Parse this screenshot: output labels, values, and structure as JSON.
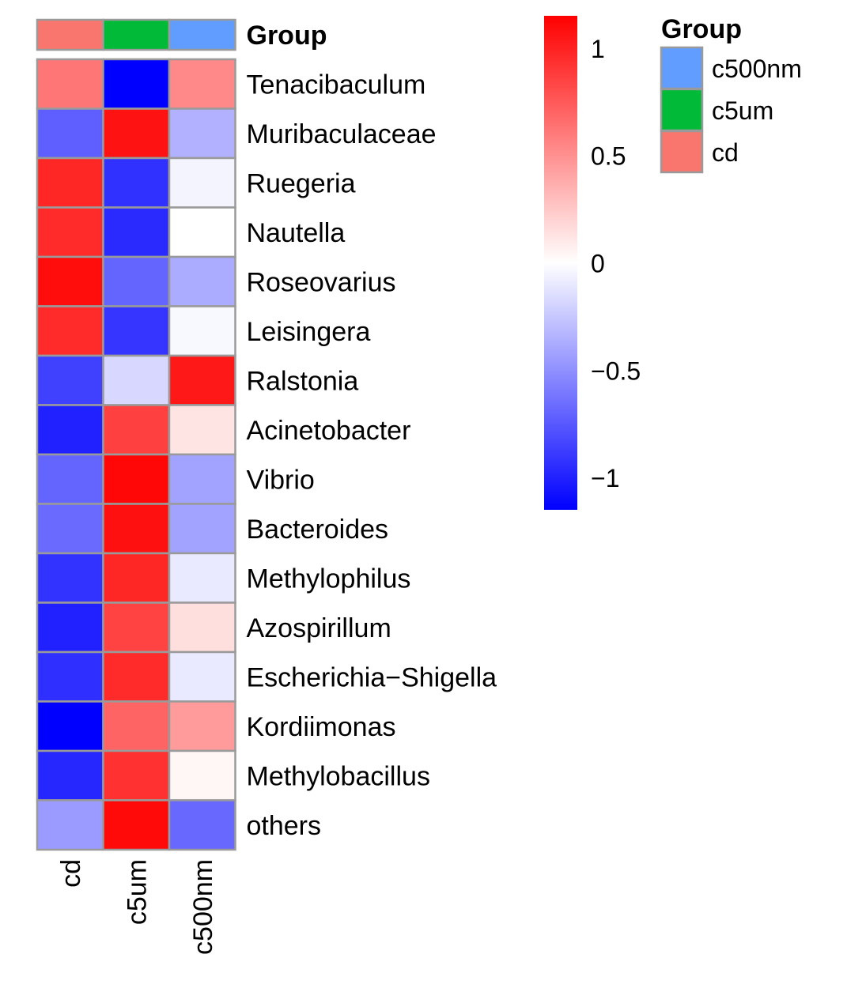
{
  "chart_data": {
    "type": "heatmap",
    "columns": [
      "cd",
      "c5um",
      "c500nm"
    ],
    "rows": [
      "Tenacibaculum",
      "Muribaculaceae",
      "Ruegeria",
      "Nautella",
      "Roseovarius",
      "Leisingera",
      "Ralstonia",
      "Acinetobacter",
      "Vibrio",
      "Bacteroides",
      "Methylophilus",
      "Azospirillum",
      "Escherichia−Shigella",
      "Kordiimonas",
      "Methylobacillus",
      "others"
    ],
    "values": [
      [
        0.62,
        -1.15,
        0.53
      ],
      [
        -0.72,
        1.07,
        -0.35
      ],
      [
        0.98,
        -0.93,
        -0.05
      ],
      [
        0.96,
        -0.96,
        0.0
      ],
      [
        1.09,
        -0.7,
        -0.38
      ],
      [
        0.96,
        -0.91,
        -0.03
      ],
      [
        -0.86,
        -0.18,
        1.04
      ],
      [
        -1.0,
        0.86,
        0.12
      ],
      [
        -0.7,
        1.12,
        -0.42
      ],
      [
        -0.67,
        1.08,
        -0.42
      ],
      [
        -0.92,
        0.98,
        -0.1
      ],
      [
        -1.0,
        0.85,
        0.15
      ],
      [
        -0.94,
        0.96,
        -0.1
      ],
      [
        -1.15,
        0.7,
        0.45
      ],
      [
        -0.98,
        0.93,
        0.04
      ],
      [
        -0.45,
        1.11,
        -0.68
      ]
    ],
    "annotation": {
      "title": "Group",
      "column_colors": [
        "#F8766D",
        "#00BA38",
        "#619CFF"
      ]
    },
    "legend": {
      "title": "Group",
      "items": [
        {
          "label": "c500nm",
          "color": "#619CFF"
        },
        {
          "label": "c5um",
          "color": "#00BA38"
        },
        {
          "label": "cd",
          "color": "#F8766D"
        }
      ],
      "placement": "top-right"
    },
    "colorbar": {
      "range": [
        -1.15,
        1.15
      ],
      "ticks": [
        1,
        0.5,
        0,
        -0.5,
        -1
      ],
      "tick_labels": [
        "1",
        "0.5",
        "0",
        "−0.5",
        "−1"
      ],
      "colors": {
        "low": "#0000FF",
        "mid": "#FFFFFF",
        "high": "#FF0000"
      }
    }
  }
}
